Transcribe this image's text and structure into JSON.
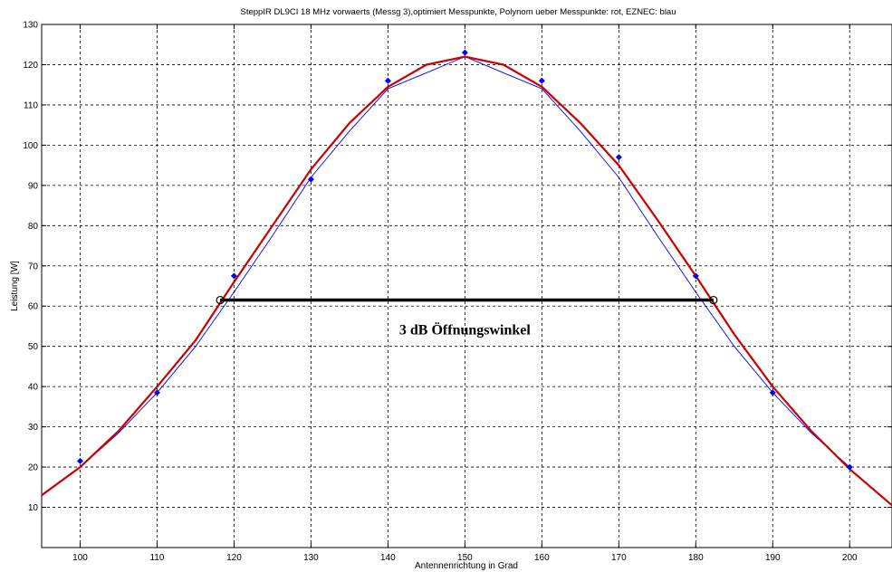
{
  "chart_data": {
    "type": "line",
    "title": "SteppIR DL9CI 18 MHz vorwaerts (Messg 3),optimiert  Messpunkte, Polynom ueber Messpunkte: rot, EZNEC: blau",
    "xlabel": "Antennenrichtung in Grad",
    "ylabel": "Leistung [W]",
    "xlim": [
      95,
      205.5
    ],
    "ylim": [
      0,
      130
    ],
    "xticks": [
      100,
      110,
      120,
      130,
      140,
      150,
      160,
      170,
      180,
      190,
      200
    ],
    "yticks": [
      10,
      20,
      30,
      40,
      50,
      60,
      70,
      80,
      90,
      100,
      110,
      120,
      130
    ],
    "grid": true,
    "series": [
      {
        "role": "Messpunkte",
        "color": "#0000ff",
        "marker": "diamond",
        "x": [
          100,
          110,
          120,
          130,
          140,
          150,
          160,
          170,
          180,
          190,
          200
        ],
        "y": [
          21.5,
          38.5,
          67.5,
          91.5,
          116,
          123,
          116,
          97,
          67.5,
          38.5,
          20
        ]
      },
      {
        "role": "Polynom",
        "color": "#cc0000",
        "style": "line",
        "x": [
          95,
          100,
          105,
          110,
          115,
          120,
          125,
          130,
          135,
          140,
          145,
          150,
          155,
          160,
          165,
          170,
          175,
          180,
          185,
          190,
          195,
          200,
          205.5
        ],
        "y": [
          13,
          20,
          29,
          40,
          51.5,
          66,
          80,
          94,
          105.5,
          114.5,
          120,
          122,
          120,
          114.5,
          105.5,
          95,
          81.5,
          67.5,
          53,
          40,
          29,
          19.5,
          10.5
        ]
      },
      {
        "role": "EZNEC",
        "color": "#0000ff",
        "style": "line",
        "x": [
          100,
          105,
          110,
          115,
          120,
          125,
          130,
          135,
          140,
          145,
          150,
          155,
          160,
          165,
          170,
          175,
          180,
          185,
          190,
          195,
          200
        ],
        "y": [
          20,
          28.5,
          38.5,
          50,
          63.5,
          77.5,
          92,
          103.5,
          114,
          118,
          122,
          118,
          114,
          103.5,
          92,
          77.5,
          63.5,
          50,
          38.5,
          28.5,
          20
        ]
      }
    ],
    "annotation": {
      "text": "3 dB Öffnungswinkel",
      "line": {
        "x1": 118.2,
        "x2": 182.3,
        "y": 61.5,
        "color": "#000000"
      },
      "label_x": 150,
      "label_y": 53
    }
  }
}
